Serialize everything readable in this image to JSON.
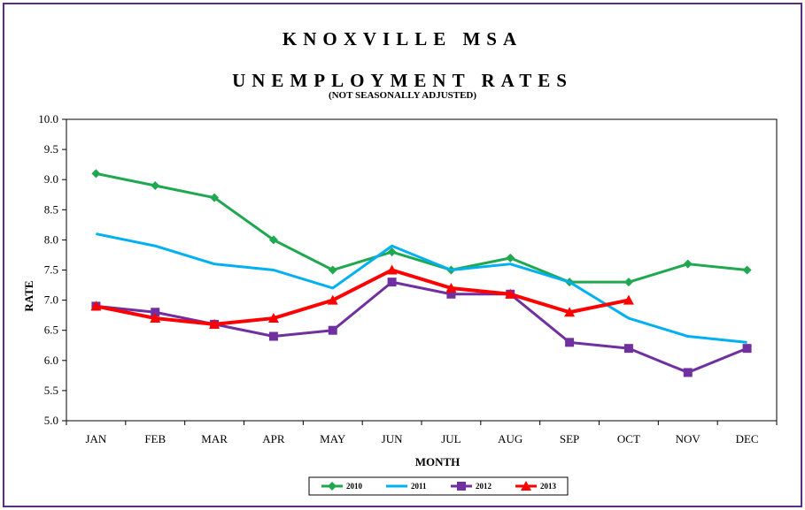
{
  "chart_data": {
    "type": "line",
    "title_line1": "KNOXVILLE MSA",
    "title_line2": "UNEMPLOYMENT RATES",
    "subtitle": "(NOT SEASONALLY ADJUSTED)",
    "xlabel": "MONTH",
    "ylabel": "RATE",
    "categories": [
      "JAN",
      "FEB",
      "MAR",
      "APR",
      "MAY",
      "JUN",
      "JUL",
      "AUG",
      "SEP",
      "OCT",
      "NOV",
      "DEC"
    ],
    "ylim": [
      5.0,
      10.0
    ],
    "yticks": [
      "5.0",
      "5.5",
      "6.0",
      "6.5",
      "7.0",
      "7.5",
      "8.0",
      "8.5",
      "9.0",
      "9.5",
      "10.0"
    ],
    "legend_position": "bottom",
    "series": [
      {
        "name": "2010",
        "color": "#1fa84f",
        "marker": "diamond",
        "values": [
          9.1,
          8.9,
          8.7,
          8.0,
          7.5,
          7.8,
          7.5,
          7.7,
          7.3,
          7.3,
          7.6,
          7.5
        ]
      },
      {
        "name": "2011",
        "color": "#00b0f0",
        "marker": "none",
        "values": [
          8.1,
          7.9,
          7.6,
          7.5,
          7.2,
          7.9,
          7.5,
          7.6,
          7.3,
          6.7,
          6.4,
          6.3
        ]
      },
      {
        "name": "2012",
        "color": "#7030a0",
        "marker": "square",
        "values": [
          6.9,
          6.8,
          6.6,
          6.4,
          6.5,
          7.3,
          7.1,
          7.1,
          6.3,
          6.2,
          5.8,
          6.2
        ]
      },
      {
        "name": "2013",
        "color": "#ff0000",
        "marker": "triangle",
        "values": [
          6.9,
          6.7,
          6.6,
          6.7,
          7.0,
          7.5,
          7.2,
          7.1,
          6.8,
          7.0,
          null,
          null
        ]
      }
    ]
  }
}
